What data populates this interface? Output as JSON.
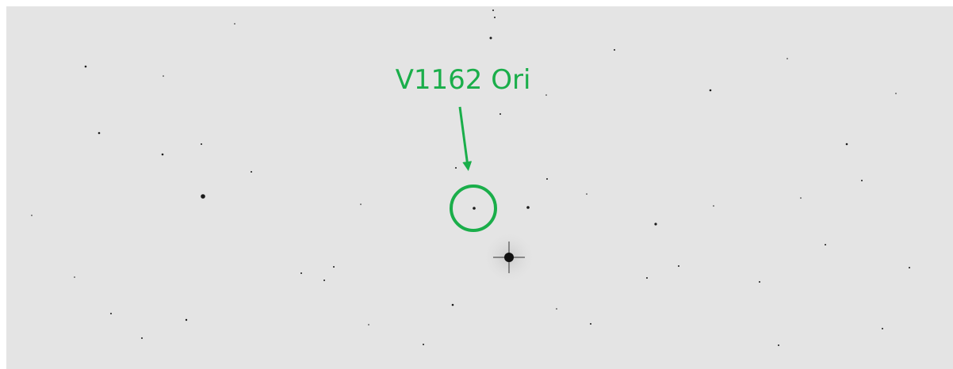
{
  "annotation": {
    "label": "V1162 Ori"
  }
}
